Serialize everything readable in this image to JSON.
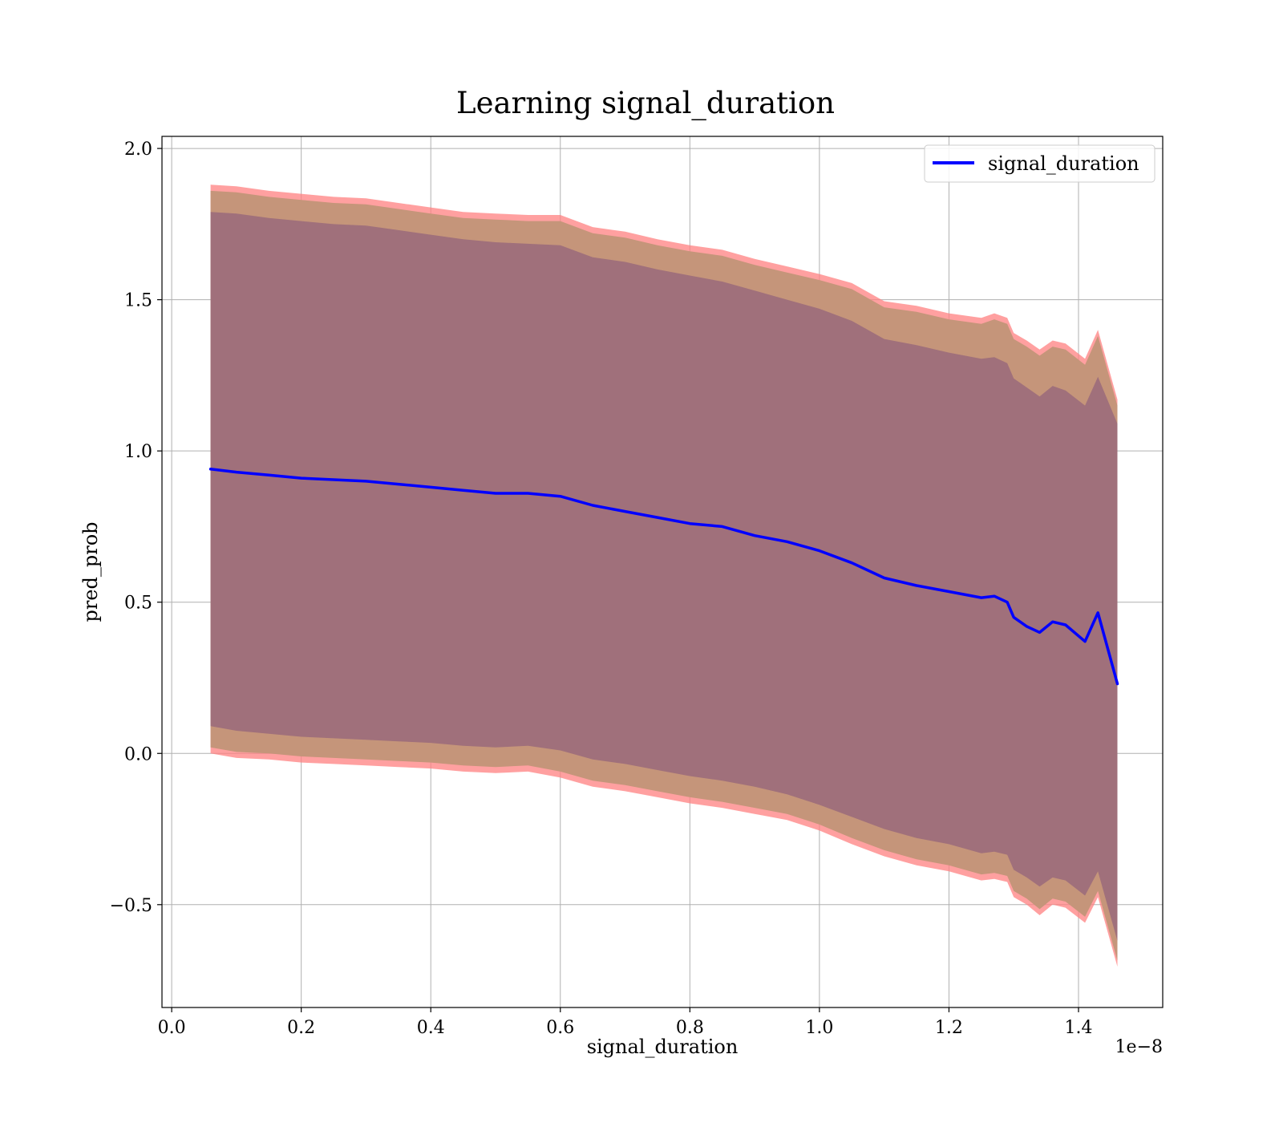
{
  "chart_data": {
    "type": "line",
    "title": "Learning signal_duration",
    "xlabel": "signal_duration",
    "ylabel": "pred_prob",
    "x_offset_label": "1e−8",
    "xlim": [
      -0.015,
      1.53
    ],
    "ylim": [
      -0.84,
      2.04
    ],
    "x_ticks": [
      0.0,
      0.2,
      0.4,
      0.6,
      0.8,
      1.0,
      1.2,
      1.4
    ],
    "x_tick_labels": [
      "0.0",
      "0.2",
      "0.4",
      "0.6",
      "0.8",
      "1.0",
      "1.2",
      "1.4"
    ],
    "y_ticks": [
      -0.5,
      0.0,
      0.5,
      1.0,
      1.5,
      2.0
    ],
    "y_tick_labels": [
      "−0.5",
      "0.0",
      "0.5",
      "1.0",
      "1.5",
      "2.0"
    ],
    "grid": true,
    "legend": {
      "position": "top-right",
      "entries": [
        "signal_duration"
      ]
    },
    "colors": {
      "line": "#0000ff",
      "band_outer": "#ff8080",
      "band_mid": "#c5957a",
      "band_inner": "#a0707b"
    },
    "series": [
      {
        "name": "signal_duration",
        "x": [
          0.06,
          0.1,
          0.15,
          0.2,
          0.25,
          0.3,
          0.35,
          0.4,
          0.45,
          0.5,
          0.55,
          0.6,
          0.65,
          0.7,
          0.75,
          0.8,
          0.85,
          0.9,
          0.95,
          1.0,
          1.05,
          1.1,
          1.15,
          1.2,
          1.25,
          1.27,
          1.29,
          1.3,
          1.32,
          1.34,
          1.36,
          1.38,
          1.41,
          1.43,
          1.46
        ],
        "y": [
          0.94,
          0.93,
          0.92,
          0.91,
          0.905,
          0.9,
          0.89,
          0.88,
          0.87,
          0.86,
          0.86,
          0.85,
          0.82,
          0.8,
          0.78,
          0.76,
          0.75,
          0.72,
          0.7,
          0.67,
          0.63,
          0.58,
          0.555,
          0.535,
          0.515,
          0.52,
          0.5,
          0.45,
          0.42,
          0.4,
          0.435,
          0.425,
          0.37,
          0.465,
          0.23
        ]
      }
    ],
    "bands": [
      {
        "layer": "outer",
        "x": [
          0.06,
          0.1,
          0.15,
          0.2,
          0.25,
          0.3,
          0.35,
          0.4,
          0.45,
          0.5,
          0.55,
          0.6,
          0.65,
          0.7,
          0.75,
          0.8,
          0.85,
          0.9,
          0.95,
          1.0,
          1.05,
          1.1,
          1.15,
          1.2,
          1.25,
          1.27,
          1.29,
          1.3,
          1.32,
          1.34,
          1.36,
          1.38,
          1.41,
          1.43,
          1.46
        ],
        "upper": [
          1.88,
          1.875,
          1.86,
          1.85,
          1.84,
          1.835,
          1.82,
          1.805,
          1.79,
          1.785,
          1.78,
          1.78,
          1.74,
          1.725,
          1.7,
          1.68,
          1.665,
          1.635,
          1.61,
          1.585,
          1.555,
          1.495,
          1.48,
          1.455,
          1.44,
          1.455,
          1.44,
          1.39,
          1.365,
          1.335,
          1.365,
          1.355,
          1.305,
          1.4,
          1.17
        ],
        "lower": [
          0.0,
          -0.015,
          -0.02,
          -0.03,
          -0.035,
          -0.04,
          -0.045,
          -0.05,
          -0.06,
          -0.065,
          -0.06,
          -0.08,
          -0.11,
          -0.125,
          -0.145,
          -0.165,
          -0.18,
          -0.2,
          -0.22,
          -0.255,
          -0.3,
          -0.34,
          -0.37,
          -0.39,
          -0.42,
          -0.415,
          -0.425,
          -0.475,
          -0.5,
          -0.535,
          -0.5,
          -0.51,
          -0.56,
          -0.475,
          -0.705
        ]
      },
      {
        "layer": "mid",
        "x": [
          0.06,
          0.1,
          0.15,
          0.2,
          0.25,
          0.3,
          0.35,
          0.4,
          0.45,
          0.5,
          0.55,
          0.6,
          0.65,
          0.7,
          0.75,
          0.8,
          0.85,
          0.9,
          0.95,
          1.0,
          1.05,
          1.1,
          1.15,
          1.2,
          1.25,
          1.27,
          1.29,
          1.3,
          1.32,
          1.34,
          1.36,
          1.38,
          1.41,
          1.43,
          1.46
        ],
        "upper": [
          1.86,
          1.855,
          1.84,
          1.83,
          1.82,
          1.815,
          1.8,
          1.785,
          1.77,
          1.765,
          1.76,
          1.76,
          1.72,
          1.705,
          1.68,
          1.66,
          1.645,
          1.615,
          1.59,
          1.565,
          1.535,
          1.475,
          1.46,
          1.435,
          1.42,
          1.435,
          1.42,
          1.37,
          1.345,
          1.315,
          1.345,
          1.335,
          1.285,
          1.38,
          1.15
        ],
        "lower": [
          0.02,
          0.005,
          0.0,
          -0.01,
          -0.015,
          -0.02,
          -0.025,
          -0.03,
          -0.04,
          -0.045,
          -0.04,
          -0.06,
          -0.09,
          -0.105,
          -0.125,
          -0.145,
          -0.16,
          -0.18,
          -0.2,
          -0.235,
          -0.28,
          -0.32,
          -0.35,
          -0.37,
          -0.4,
          -0.395,
          -0.405,
          -0.455,
          -0.48,
          -0.515,
          -0.48,
          -0.49,
          -0.54,
          -0.455,
          -0.685
        ]
      },
      {
        "layer": "inner",
        "x": [
          0.06,
          0.1,
          0.15,
          0.2,
          0.25,
          0.3,
          0.35,
          0.4,
          0.45,
          0.5,
          0.55,
          0.6,
          0.65,
          0.7,
          0.75,
          0.8,
          0.85,
          0.9,
          0.95,
          1.0,
          1.05,
          1.1,
          1.15,
          1.2,
          1.25,
          1.27,
          1.29,
          1.3,
          1.32,
          1.34,
          1.36,
          1.38,
          1.41,
          1.43,
          1.46
        ],
        "upper": [
          1.79,
          1.785,
          1.77,
          1.76,
          1.75,
          1.745,
          1.73,
          1.715,
          1.7,
          1.69,
          1.685,
          1.68,
          1.64,
          1.625,
          1.6,
          1.58,
          1.56,
          1.53,
          1.5,
          1.47,
          1.43,
          1.37,
          1.35,
          1.325,
          1.305,
          1.31,
          1.29,
          1.24,
          1.21,
          1.18,
          1.215,
          1.2,
          1.15,
          1.245,
          1.09
        ],
        "lower": [
          0.09,
          0.075,
          0.065,
          0.055,
          0.05,
          0.045,
          0.04,
          0.035,
          0.025,
          0.02,
          0.025,
          0.01,
          -0.02,
          -0.035,
          -0.055,
          -0.075,
          -0.09,
          -0.11,
          -0.135,
          -0.17,
          -0.21,
          -0.25,
          -0.28,
          -0.3,
          -0.33,
          -0.325,
          -0.335,
          -0.385,
          -0.41,
          -0.44,
          -0.41,
          -0.42,
          -0.47,
          -0.39,
          -0.62
        ]
      }
    ]
  }
}
